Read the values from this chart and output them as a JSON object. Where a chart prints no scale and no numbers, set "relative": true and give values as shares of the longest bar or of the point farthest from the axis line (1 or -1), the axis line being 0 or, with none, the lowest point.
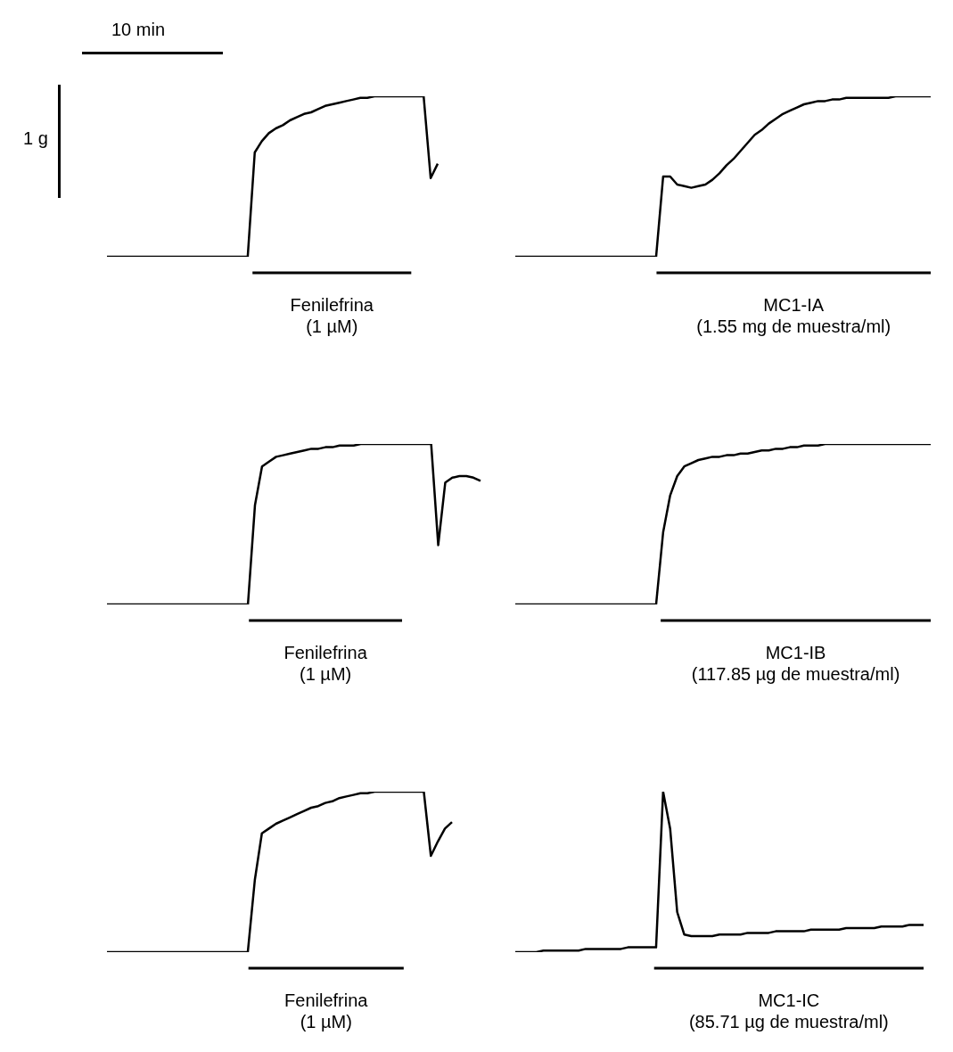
{
  "chart_data": [
    {
      "type": "line",
      "relative": true,
      "color": "#000000",
      "annotations": [
        "Fenilefrina",
        "(1 µM)",
        "10 min",
        "1 g"
      ],
      "categories": [
        null,
        null,
        null,
        null,
        null,
        null,
        null,
        null,
        null,
        null,
        null,
        null,
        null,
        null,
        null,
        null,
        null,
        null,
        null,
        null,
        null,
        null,
        null,
        null,
        null,
        null,
        null,
        null,
        null,
        null,
        null,
        null,
        null,
        null,
        null,
        null,
        null,
        null,
        null,
        null,
        null,
        null,
        null,
        null,
        null,
        null,
        null,
        null
      ],
      "values": [
        0,
        0,
        0,
        0,
        0,
        0,
        0,
        0,
        0,
        0,
        0,
        0,
        0,
        0,
        0,
        0,
        0,
        0,
        0,
        0,
        0,
        0.65,
        0.72,
        0.77,
        0.8,
        0.82,
        0.85,
        0.87,
        0.89,
        0.9,
        0.92,
        0.94,
        0.95,
        0.96,
        0.97,
        0.98,
        0.99,
        0.99,
        1,
        1,
        1,
        1,
        1,
        1,
        1,
        1,
        0.49,
        0.58
      ]
    },
    {
      "type": "line",
      "relative": true,
      "color": "#000000",
      "annotations": [
        "MC1-IA",
        "(1.55 mg de muestra/ml)"
      ],
      "categories": [
        null,
        null,
        null,
        null,
        null,
        null,
        null,
        null,
        null,
        null,
        null,
        null,
        null,
        null,
        null,
        null,
        null,
        null,
        null,
        null,
        null,
        null,
        null,
        null,
        null,
        null,
        null,
        null,
        null,
        null,
        null,
        null,
        null,
        null,
        null,
        null,
        null,
        null,
        null,
        null,
        null,
        null,
        null,
        null,
        null,
        null,
        null,
        null,
        null,
        null,
        null,
        null,
        null,
        null,
        null,
        null,
        null,
        null,
        null,
        null
      ],
      "values": [
        0,
        0,
        0,
        0,
        0,
        0,
        0,
        0,
        0,
        0,
        0,
        0,
        0,
        0,
        0,
        0,
        0,
        0,
        0,
        0,
        0,
        0.5,
        0.5,
        0.45,
        0.44,
        0.43,
        0.44,
        0.45,
        0.48,
        0.52,
        0.57,
        0.61,
        0.66,
        0.71,
        0.76,
        0.79,
        0.83,
        0.86,
        0.89,
        0.91,
        0.93,
        0.95,
        0.96,
        0.97,
        0.97,
        0.98,
        0.98,
        0.99,
        0.99,
        0.99,
        0.99,
        0.99,
        0.99,
        0.99,
        1,
        1,
        1,
        1,
        1,
        1
      ]
    },
    {
      "type": "line",
      "relative": true,
      "color": "#000000",
      "annotations": [
        "Fenilefrina",
        "(1 µM)"
      ],
      "categories": [
        null,
        null,
        null,
        null,
        null,
        null,
        null,
        null,
        null,
        null,
        null,
        null,
        null,
        null,
        null,
        null,
        null,
        null,
        null,
        null,
        null,
        null,
        null,
        null,
        null,
        null,
        null,
        null,
        null,
        null,
        null,
        null,
        null,
        null,
        null,
        null,
        null,
        null,
        null,
        null,
        null,
        null,
        null,
        null,
        null,
        null,
        null,
        null,
        null,
        null,
        null,
        null,
        null,
        null
      ],
      "values": [
        0,
        0,
        0,
        0,
        0,
        0,
        0,
        0,
        0,
        0,
        0,
        0,
        0,
        0,
        0,
        0,
        0,
        0,
        0,
        0,
        0,
        0.62,
        0.86,
        0.89,
        0.92,
        0.93,
        0.94,
        0.95,
        0.96,
        0.97,
        0.97,
        0.98,
        0.98,
        0.99,
        0.99,
        0.99,
        1,
        1,
        1,
        1,
        1,
        1,
        1,
        1,
        1,
        1,
        1,
        0.37,
        0.76,
        0.79,
        0.8,
        0.8,
        0.79,
        0.77
      ]
    },
    {
      "type": "line",
      "relative": true,
      "color": "#000000",
      "annotations": [
        "MC1-IB",
        "(117.85 µg de muestra/ml)"
      ],
      "categories": [
        null,
        null,
        null,
        null,
        null,
        null,
        null,
        null,
        null,
        null,
        null,
        null,
        null,
        null,
        null,
        null,
        null,
        null,
        null,
        null,
        null,
        null,
        null,
        null,
        null,
        null,
        null,
        null,
        null,
        null,
        null,
        null,
        null,
        null,
        null,
        null,
        null,
        null,
        null,
        null,
        null,
        null,
        null,
        null,
        null,
        null,
        null,
        null,
        null,
        null,
        null,
        null,
        null,
        null,
        null,
        null,
        null,
        null,
        null,
        null
      ],
      "values": [
        0,
        0,
        0,
        0,
        0,
        0,
        0,
        0,
        0,
        0,
        0,
        0,
        0,
        0,
        0,
        0,
        0,
        0,
        0,
        0,
        0,
        0.45,
        0.68,
        0.8,
        0.86,
        0.88,
        0.9,
        0.91,
        0.92,
        0.92,
        0.93,
        0.93,
        0.94,
        0.94,
        0.95,
        0.96,
        0.96,
        0.97,
        0.97,
        0.98,
        0.98,
        0.99,
        0.99,
        0.99,
        1,
        1,
        1,
        1,
        1,
        1,
        1,
        1,
        1,
        1,
        1,
        1,
        1,
        1,
        1,
        1
      ]
    },
    {
      "type": "line",
      "relative": true,
      "color": "#000000",
      "annotations": [
        "Fenilefrina",
        "(1 µM)"
      ],
      "categories": [
        null,
        null,
        null,
        null,
        null,
        null,
        null,
        null,
        null,
        null,
        null,
        null,
        null,
        null,
        null,
        null,
        null,
        null,
        null,
        null,
        null,
        null,
        null,
        null,
        null,
        null,
        null,
        null,
        null,
        null,
        null,
        null,
        null,
        null,
        null,
        null,
        null,
        null,
        null,
        null,
        null,
        null,
        null,
        null,
        null,
        null,
        null,
        null,
        null,
        null
      ],
      "values": [
        0,
        0,
        0,
        0,
        0,
        0,
        0,
        0,
        0,
        0,
        0,
        0,
        0,
        0,
        0,
        0,
        0,
        0,
        0,
        0,
        0,
        0.45,
        0.74,
        0.77,
        0.8,
        0.82,
        0.84,
        0.86,
        0.88,
        0.9,
        0.91,
        0.93,
        0.94,
        0.96,
        0.97,
        0.98,
        0.99,
        0.99,
        1,
        1,
        1,
        1,
        1,
        1,
        1,
        1,
        0.6,
        0.69,
        0.77,
        0.81
      ]
    },
    {
      "type": "line",
      "relative": true,
      "color": "#000000",
      "annotations": [
        "MC1-IC",
        "(85.71 µg de muestra/ml)"
      ],
      "categories": [
        null,
        null,
        null,
        null,
        null,
        null,
        null,
        null,
        null,
        null,
        null,
        null,
        null,
        null,
        null,
        null,
        null,
        null,
        null,
        null,
        null,
        null,
        null,
        null,
        null,
        null,
        null,
        null,
        null,
        null,
        null,
        null,
        null,
        null,
        null,
        null,
        null,
        null,
        null,
        null,
        null,
        null,
        null,
        null,
        null,
        null,
        null,
        null,
        null,
        null,
        null,
        null,
        null,
        null,
        null,
        null,
        null,
        null,
        null
      ],
      "values": [
        0,
        0,
        0,
        0,
        0.01,
        0.01,
        0.01,
        0.01,
        0.01,
        0.01,
        0.02,
        0.02,
        0.02,
        0.02,
        0.02,
        0.02,
        0.03,
        0.03,
        0.03,
        0.03,
        0.03,
        1,
        0.77,
        0.25,
        0.11,
        0.1,
        0.1,
        0.1,
        0.1,
        0.11,
        0.11,
        0.11,
        0.11,
        0.12,
        0.12,
        0.12,
        0.12,
        0.13,
        0.13,
        0.13,
        0.13,
        0.13,
        0.14,
        0.14,
        0.14,
        0.14,
        0.14,
        0.15,
        0.15,
        0.15,
        0.15,
        0.15,
        0.16,
        0.16,
        0.16,
        0.16,
        0.17,
        0.17,
        0.17
      ]
    }
  ]
}
